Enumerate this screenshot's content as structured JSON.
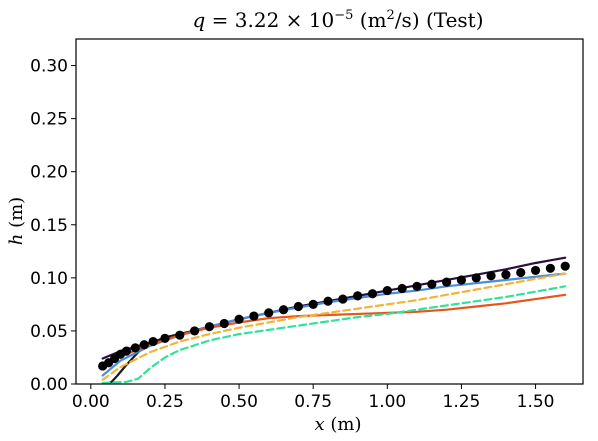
{
  "chart_data": {
    "type": "line",
    "title": {
      "q_symbol": "q",
      "eq": " = 3.22 × 10",
      "exponent": "−5",
      "unit_open": " (m",
      "unit_sup": "2",
      "unit_close": "/s) (Test)"
    },
    "xlabel": {
      "var": "x",
      "unit": " (m)"
    },
    "ylabel": {
      "var": "h",
      "unit": " (m)"
    },
    "xlim": [
      -0.05,
      1.66
    ],
    "ylim": [
      0,
      0.325
    ],
    "x_ticks": [
      0.0,
      0.25,
      0.5,
      0.75,
      1.0,
      1.25,
      1.5
    ],
    "x_tick_labels": [
      "0.00",
      "0.25",
      "0.50",
      "0.75",
      "1.00",
      "1.25",
      "1.50"
    ],
    "y_ticks": [
      0.0,
      0.05,
      0.1,
      0.15,
      0.2,
      0.25,
      0.3
    ],
    "y_tick_labels": [
      "0.00",
      "0.05",
      "0.10",
      "0.15",
      "0.20",
      "0.25",
      "0.30"
    ],
    "grid": false,
    "legend": "none",
    "series": [
      {
        "style": "solid",
        "color": "#2b0f3f",
        "x": [
          0.04,
          0.1,
          0.2,
          0.3,
          0.4,
          0.5,
          0.6,
          0.7,
          0.8,
          0.9,
          1.0,
          1.1,
          1.2,
          1.3,
          1.4,
          1.5,
          1.6
        ],
        "y": [
          0.024,
          0.031,
          0.039,
          0.047,
          0.054,
          0.061,
          0.067,
          0.073,
          0.078,
          0.083,
          0.088,
          0.093,
          0.098,
          0.103,
          0.108,
          0.114,
          0.119
        ]
      },
      {
        "style": "solid",
        "color": "#1a1a1a",
        "x": [
          0.05,
          0.07,
          0.09,
          0.12,
          0.16,
          0.2,
          0.25,
          0.3
        ],
        "y": [
          0.0,
          0.002,
          0.008,
          0.018,
          0.03,
          0.038,
          0.044,
          0.047
        ]
      },
      {
        "style": "solid",
        "color": "#4a8fdc",
        "x": [
          0.04,
          0.1,
          0.2,
          0.3,
          0.4,
          0.5,
          0.6,
          0.7,
          0.8,
          0.9,
          1.0,
          1.1,
          1.2,
          1.3,
          1.4,
          1.5,
          1.6
        ],
        "y": [
          0.008,
          0.022,
          0.036,
          0.046,
          0.054,
          0.061,
          0.067,
          0.072,
          0.077,
          0.081,
          0.085,
          0.088,
          0.092,
          0.095,
          0.098,
          0.101,
          0.104
        ]
      },
      {
        "style": "solid",
        "color": "#e8551a",
        "x": [
          0.04,
          0.1,
          0.2,
          0.3,
          0.4,
          0.5,
          0.6,
          0.7,
          0.8,
          0.9,
          1.0,
          1.1,
          1.2,
          1.3,
          1.4,
          1.5,
          1.6
        ],
        "y": [
          0.018,
          0.026,
          0.037,
          0.046,
          0.053,
          0.058,
          0.062,
          0.064,
          0.065,
          0.066,
          0.067,
          0.068,
          0.07,
          0.073,
          0.076,
          0.08,
          0.084
        ]
      },
      {
        "style": "dashed",
        "color": "#f2b43a",
        "x": [
          0.04,
          0.1,
          0.2,
          0.3,
          0.4,
          0.5,
          0.6,
          0.7,
          0.8,
          0.9,
          1.0,
          1.1,
          1.2,
          1.3,
          1.4,
          1.5,
          1.6
        ],
        "y": [
          0.004,
          0.016,
          0.03,
          0.04,
          0.047,
          0.053,
          0.058,
          0.063,
          0.067,
          0.071,
          0.075,
          0.079,
          0.084,
          0.089,
          0.094,
          0.099,
          0.104
        ]
      },
      {
        "style": "dashed",
        "color": "#2fe39a",
        "x": [
          0.04,
          0.12,
          0.16,
          0.2,
          0.25,
          0.3,
          0.4,
          0.5,
          0.6,
          0.7,
          0.8,
          0.9,
          1.0,
          1.1,
          1.2,
          1.3,
          1.4,
          1.5,
          1.6
        ],
        "y": [
          0.001,
          0.002,
          0.005,
          0.015,
          0.025,
          0.032,
          0.041,
          0.047,
          0.051,
          0.055,
          0.059,
          0.063,
          0.066,
          0.07,
          0.074,
          0.078,
          0.082,
          0.087,
          0.092
        ]
      },
      {
        "style": "markers",
        "color": "#000000",
        "x": [
          0.04,
          0.06,
          0.08,
          0.1,
          0.12,
          0.15,
          0.18,
          0.21,
          0.25,
          0.3,
          0.35,
          0.4,
          0.45,
          0.5,
          0.55,
          0.6,
          0.65,
          0.7,
          0.75,
          0.8,
          0.85,
          0.9,
          0.95,
          1.0,
          1.05,
          1.1,
          1.15,
          1.2,
          1.25,
          1.3,
          1.35,
          1.4,
          1.45,
          1.5,
          1.55,
          1.6
        ],
        "y": [
          0.017,
          0.02,
          0.024,
          0.028,
          0.031,
          0.034,
          0.037,
          0.04,
          0.043,
          0.046,
          0.05,
          0.054,
          0.057,
          0.061,
          0.064,
          0.067,
          0.07,
          0.073,
          0.075,
          0.078,
          0.08,
          0.083,
          0.085,
          0.088,
          0.09,
          0.092,
          0.094,
          0.096,
          0.098,
          0.1,
          0.102,
          0.103,
          0.105,
          0.107,
          0.109,
          0.111
        ]
      }
    ]
  }
}
